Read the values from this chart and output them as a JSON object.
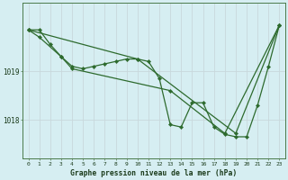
{
  "xlabel": "Graphe pression niveau de la mer (hPa)",
  "background_color": "#d6eef2",
  "line_color": "#2d6a2d",
  "grid_color": "#c8d8dc",
  "hours": [
    0,
    1,
    2,
    3,
    4,
    5,
    6,
    7,
    8,
    9,
    10,
    11,
    12,
    13,
    14,
    15,
    16,
    17,
    18,
    19,
    20,
    21,
    22,
    23
  ],
  "series1": [
    1019.85,
    1019.85,
    1019.55,
    1019.3,
    1019.1,
    1019.05,
    1019.1,
    1019.15,
    1019.2,
    1019.25,
    1019.25,
    1019.2,
    1018.85,
    1017.9,
    1017.85,
    1018.35,
    1018.35,
    1017.85,
    1017.7,
    1017.65,
    1017.65,
    1018.3,
    1019.1,
    1019.95
  ],
  "series2": [
    1019.85,
    1019.7,
    null,
    1019.3,
    1019.05,
    null,
    null,
    null,
    null,
    null,
    null,
    null,
    null,
    1018.6,
    null,
    null,
    null,
    null,
    1017.72,
    null,
    null,
    null,
    null,
    1019.95
  ],
  "series3": [
    1019.85,
    null,
    null,
    null,
    null,
    null,
    null,
    null,
    null,
    null,
    1019.25,
    null,
    null,
    null,
    null,
    null,
    null,
    null,
    null,
    1017.72,
    null,
    null,
    null,
    1019.95
  ],
  "ylim_min": 1017.2,
  "ylim_max": 1020.4,
  "ytick_positions": [
    1018.0,
    1019.0
  ],
  "ytick_labels": [
    "1018",
    "1019"
  ],
  "figwidth": 3.2,
  "figheight": 2.0,
  "dpi": 100
}
